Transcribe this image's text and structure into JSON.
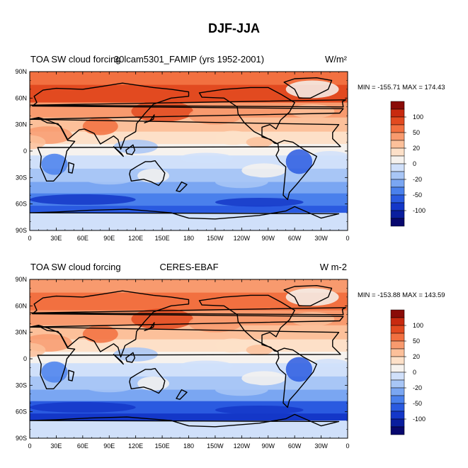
{
  "title": "DJF-JJA",
  "colors": {
    "levels": [
      "#08086e",
      "#0a1e9e",
      "#1437c8",
      "#2a5ae0",
      "#4a80ec",
      "#7aa6f2",
      "#a8c6f6",
      "#d0e0fa",
      "#f6f2ee",
      "#fde0c8",
      "#fcc09a",
      "#f89a6e",
      "#f27040",
      "#e24a20",
      "#c82a10",
      "#8a0c08"
    ]
  },
  "colorbar_ticks": [
    "100",
    "50",
    "20",
    "0",
    "-20",
    "-50",
    "-100"
  ],
  "x_ticks": [
    "0",
    "30E",
    "60E",
    "90E",
    "120E",
    "150E",
    "180",
    "150W",
    "120W",
    "90W",
    "60W",
    "30W",
    "0"
  ],
  "y_ticks": [
    "90N",
    "60N",
    "30N",
    "0",
    "30S",
    "60S",
    "90S"
  ],
  "panels": [
    {
      "left_title": "TOA SW cloud forcing",
      "center_title": "30lcam5301_FAMIP (yrs 1952-2001)",
      "units": "W/m²",
      "stats": "MIN = -155.71 MAX = 174.43",
      "ocean": {
        "north_high": 4,
        "north_mid": 2,
        "tropics": 0,
        "south_mid": -2,
        "south_high": -4
      }
    },
    {
      "left_title": "TOA SW cloud forcing",
      "center_title": "CERES-EBAF",
      "units": "W m-2",
      "stats": "MIN = -153.88 MAX = 143.59",
      "ocean": {
        "north_high": 3,
        "north_mid": 2,
        "tropics": 0,
        "south_mid": -2,
        "south_high": -5
      }
    }
  ]
}
